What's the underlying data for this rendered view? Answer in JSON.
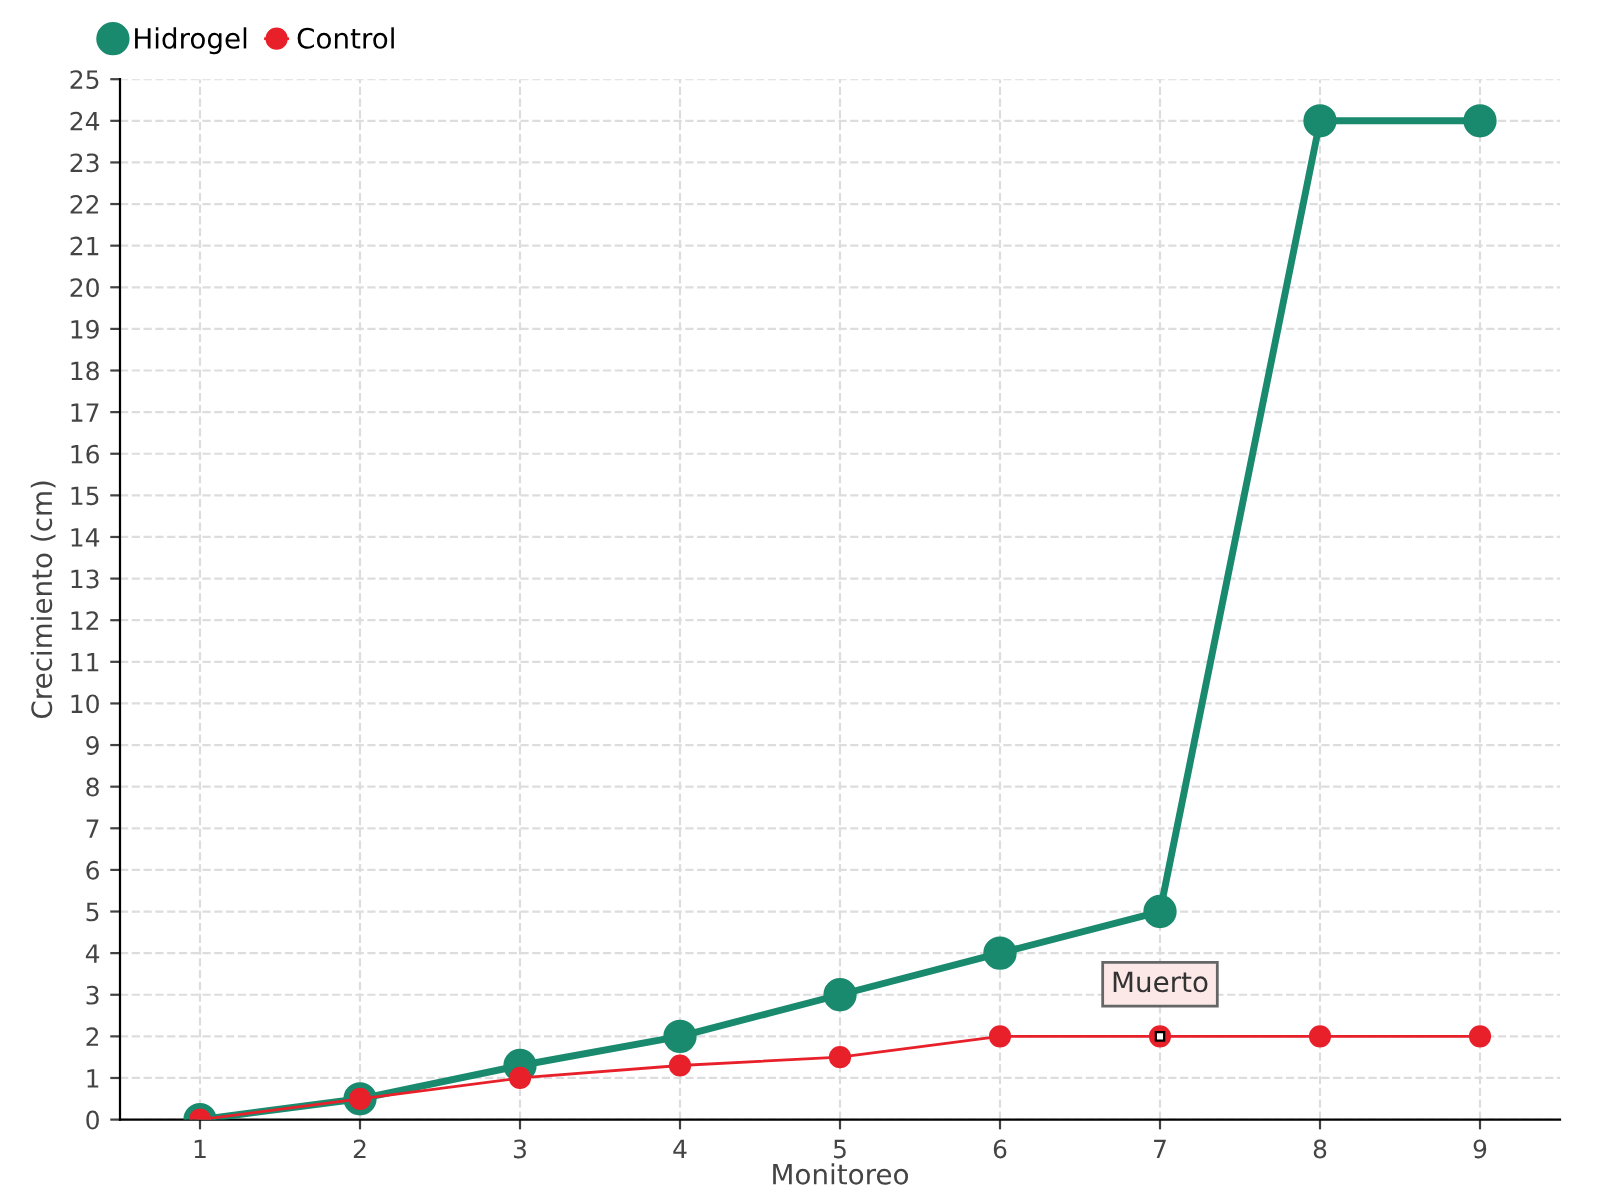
{
  "chart_data": {
    "type": "line",
    "xlabel": "Monitoreo",
    "ylabel": "Crecimiento (cm)",
    "x": [
      1,
      2,
      3,
      4,
      5,
      6,
      7,
      8,
      9
    ],
    "series": [
      {
        "name": "Hidrogel",
        "color": "#1a8a6e",
        "values": [
          0,
          0.5,
          1.3,
          2,
          3,
          4,
          5,
          24,
          24
        ]
      },
      {
        "name": "Control",
        "color": "#e8202a",
        "values": [
          0,
          0.5,
          1,
          1.3,
          1.5,
          2,
          2,
          2,
          2
        ]
      }
    ],
    "xlim": [
      0.5,
      9.5
    ],
    "xticks": [
      1,
      2,
      3,
      4,
      5,
      6,
      7,
      8,
      9
    ],
    "ylim": [
      0,
      25
    ],
    "yticks": [
      0,
      1,
      2,
      3,
      4,
      5,
      6,
      7,
      8,
      9,
      10,
      11,
      12,
      13,
      14,
      15,
      16,
      17,
      18,
      19,
      20,
      21,
      22,
      23,
      24,
      25
    ],
    "annotations": [
      {
        "text": "Muerto",
        "x": 7,
        "y": 2
      }
    ],
    "grid": true,
    "legend": "top left",
    "marker": "circle",
    "line_style": "solid"
  }
}
